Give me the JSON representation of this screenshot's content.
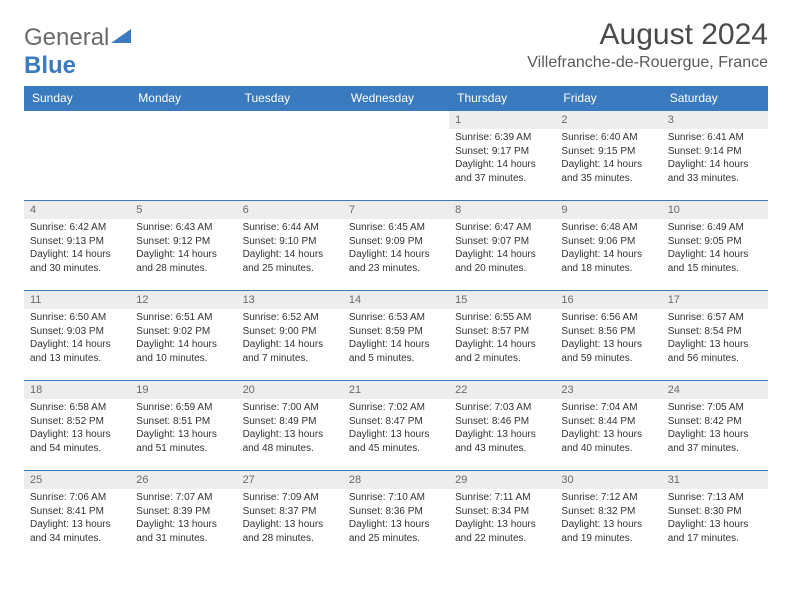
{
  "logo": {
    "text1": "General",
    "text2": "Blue",
    "icon_color": "#3a7bbf"
  },
  "title": "August 2024",
  "location": "Villefranche-de-Rouergue, France",
  "header_bg": "#3a7bbf",
  "header_fg": "#ffffff",
  "daybar_bg": "#ededed",
  "border_color": "#3a7bbf",
  "day_names": [
    "Sunday",
    "Monday",
    "Tuesday",
    "Wednesday",
    "Thursday",
    "Friday",
    "Saturday"
  ],
  "weeks": [
    [
      {
        "day": "",
        "sunrise": "",
        "sunset": "",
        "daylight1": "",
        "daylight2": ""
      },
      {
        "day": "",
        "sunrise": "",
        "sunset": "",
        "daylight1": "",
        "daylight2": ""
      },
      {
        "day": "",
        "sunrise": "",
        "sunset": "",
        "daylight1": "",
        "daylight2": ""
      },
      {
        "day": "",
        "sunrise": "",
        "sunset": "",
        "daylight1": "",
        "daylight2": ""
      },
      {
        "day": "1",
        "sunrise": "Sunrise: 6:39 AM",
        "sunset": "Sunset: 9:17 PM",
        "daylight1": "Daylight: 14 hours",
        "daylight2": "and 37 minutes."
      },
      {
        "day": "2",
        "sunrise": "Sunrise: 6:40 AM",
        "sunset": "Sunset: 9:15 PM",
        "daylight1": "Daylight: 14 hours",
        "daylight2": "and 35 minutes."
      },
      {
        "day": "3",
        "sunrise": "Sunrise: 6:41 AM",
        "sunset": "Sunset: 9:14 PM",
        "daylight1": "Daylight: 14 hours",
        "daylight2": "and 33 minutes."
      }
    ],
    [
      {
        "day": "4",
        "sunrise": "Sunrise: 6:42 AM",
        "sunset": "Sunset: 9:13 PM",
        "daylight1": "Daylight: 14 hours",
        "daylight2": "and 30 minutes."
      },
      {
        "day": "5",
        "sunrise": "Sunrise: 6:43 AM",
        "sunset": "Sunset: 9:12 PM",
        "daylight1": "Daylight: 14 hours",
        "daylight2": "and 28 minutes."
      },
      {
        "day": "6",
        "sunrise": "Sunrise: 6:44 AM",
        "sunset": "Sunset: 9:10 PM",
        "daylight1": "Daylight: 14 hours",
        "daylight2": "and 25 minutes."
      },
      {
        "day": "7",
        "sunrise": "Sunrise: 6:45 AM",
        "sunset": "Sunset: 9:09 PM",
        "daylight1": "Daylight: 14 hours",
        "daylight2": "and 23 minutes."
      },
      {
        "day": "8",
        "sunrise": "Sunrise: 6:47 AM",
        "sunset": "Sunset: 9:07 PM",
        "daylight1": "Daylight: 14 hours",
        "daylight2": "and 20 minutes."
      },
      {
        "day": "9",
        "sunrise": "Sunrise: 6:48 AM",
        "sunset": "Sunset: 9:06 PM",
        "daylight1": "Daylight: 14 hours",
        "daylight2": "and 18 minutes."
      },
      {
        "day": "10",
        "sunrise": "Sunrise: 6:49 AM",
        "sunset": "Sunset: 9:05 PM",
        "daylight1": "Daylight: 14 hours",
        "daylight2": "and 15 minutes."
      }
    ],
    [
      {
        "day": "11",
        "sunrise": "Sunrise: 6:50 AM",
        "sunset": "Sunset: 9:03 PM",
        "daylight1": "Daylight: 14 hours",
        "daylight2": "and 13 minutes."
      },
      {
        "day": "12",
        "sunrise": "Sunrise: 6:51 AM",
        "sunset": "Sunset: 9:02 PM",
        "daylight1": "Daylight: 14 hours",
        "daylight2": "and 10 minutes."
      },
      {
        "day": "13",
        "sunrise": "Sunrise: 6:52 AM",
        "sunset": "Sunset: 9:00 PM",
        "daylight1": "Daylight: 14 hours",
        "daylight2": "and 7 minutes."
      },
      {
        "day": "14",
        "sunrise": "Sunrise: 6:53 AM",
        "sunset": "Sunset: 8:59 PM",
        "daylight1": "Daylight: 14 hours",
        "daylight2": "and 5 minutes."
      },
      {
        "day": "15",
        "sunrise": "Sunrise: 6:55 AM",
        "sunset": "Sunset: 8:57 PM",
        "daylight1": "Daylight: 14 hours",
        "daylight2": "and 2 minutes."
      },
      {
        "day": "16",
        "sunrise": "Sunrise: 6:56 AM",
        "sunset": "Sunset: 8:56 PM",
        "daylight1": "Daylight: 13 hours",
        "daylight2": "and 59 minutes."
      },
      {
        "day": "17",
        "sunrise": "Sunrise: 6:57 AM",
        "sunset": "Sunset: 8:54 PM",
        "daylight1": "Daylight: 13 hours",
        "daylight2": "and 56 minutes."
      }
    ],
    [
      {
        "day": "18",
        "sunrise": "Sunrise: 6:58 AM",
        "sunset": "Sunset: 8:52 PM",
        "daylight1": "Daylight: 13 hours",
        "daylight2": "and 54 minutes."
      },
      {
        "day": "19",
        "sunrise": "Sunrise: 6:59 AM",
        "sunset": "Sunset: 8:51 PM",
        "daylight1": "Daylight: 13 hours",
        "daylight2": "and 51 minutes."
      },
      {
        "day": "20",
        "sunrise": "Sunrise: 7:00 AM",
        "sunset": "Sunset: 8:49 PM",
        "daylight1": "Daylight: 13 hours",
        "daylight2": "and 48 minutes."
      },
      {
        "day": "21",
        "sunrise": "Sunrise: 7:02 AM",
        "sunset": "Sunset: 8:47 PM",
        "daylight1": "Daylight: 13 hours",
        "daylight2": "and 45 minutes."
      },
      {
        "day": "22",
        "sunrise": "Sunrise: 7:03 AM",
        "sunset": "Sunset: 8:46 PM",
        "daylight1": "Daylight: 13 hours",
        "daylight2": "and 43 minutes."
      },
      {
        "day": "23",
        "sunrise": "Sunrise: 7:04 AM",
        "sunset": "Sunset: 8:44 PM",
        "daylight1": "Daylight: 13 hours",
        "daylight2": "and 40 minutes."
      },
      {
        "day": "24",
        "sunrise": "Sunrise: 7:05 AM",
        "sunset": "Sunset: 8:42 PM",
        "daylight1": "Daylight: 13 hours",
        "daylight2": "and 37 minutes."
      }
    ],
    [
      {
        "day": "25",
        "sunrise": "Sunrise: 7:06 AM",
        "sunset": "Sunset: 8:41 PM",
        "daylight1": "Daylight: 13 hours",
        "daylight2": "and 34 minutes."
      },
      {
        "day": "26",
        "sunrise": "Sunrise: 7:07 AM",
        "sunset": "Sunset: 8:39 PM",
        "daylight1": "Daylight: 13 hours",
        "daylight2": "and 31 minutes."
      },
      {
        "day": "27",
        "sunrise": "Sunrise: 7:09 AM",
        "sunset": "Sunset: 8:37 PM",
        "daylight1": "Daylight: 13 hours",
        "daylight2": "and 28 minutes."
      },
      {
        "day": "28",
        "sunrise": "Sunrise: 7:10 AM",
        "sunset": "Sunset: 8:36 PM",
        "daylight1": "Daylight: 13 hours",
        "daylight2": "and 25 minutes."
      },
      {
        "day": "29",
        "sunrise": "Sunrise: 7:11 AM",
        "sunset": "Sunset: 8:34 PM",
        "daylight1": "Daylight: 13 hours",
        "daylight2": "and 22 minutes."
      },
      {
        "day": "30",
        "sunrise": "Sunrise: 7:12 AM",
        "sunset": "Sunset: 8:32 PM",
        "daylight1": "Daylight: 13 hours",
        "daylight2": "and 19 minutes."
      },
      {
        "day": "31",
        "sunrise": "Sunrise: 7:13 AM",
        "sunset": "Sunset: 8:30 PM",
        "daylight1": "Daylight: 13 hours",
        "daylight2": "and 17 minutes."
      }
    ]
  ]
}
